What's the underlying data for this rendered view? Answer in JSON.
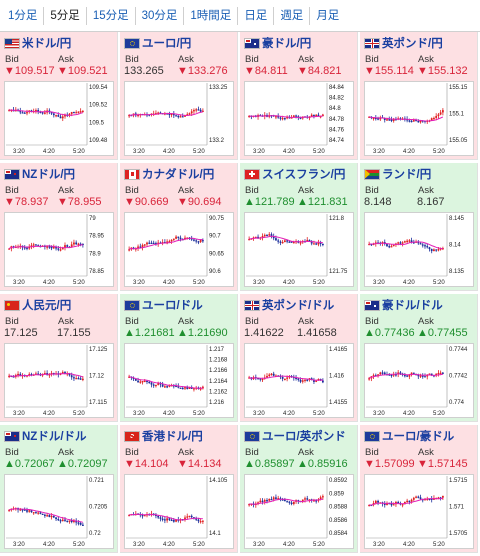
{
  "tabs": [
    {
      "label": "1分足",
      "active": false
    },
    {
      "label": "5分足",
      "active": true
    },
    {
      "label": "15分足",
      "active": false
    },
    {
      "label": "30分足",
      "active": false
    },
    {
      "label": "1時間足",
      "active": false
    },
    {
      "label": "日足",
      "active": false
    },
    {
      "label": "週足",
      "active": false
    },
    {
      "label": "月足",
      "active": false
    }
  ],
  "labels": {
    "bid": "Bid",
    "ask": "Ask"
  },
  "colors": {
    "down_bg": "#fde0e3",
    "up_bg": "#dcf5df",
    "candle_up": "#e02020",
    "candle_down": "#1c2f9c",
    "ma_line": "#e31fb8",
    "link_blue": "#1a5fb4"
  },
  "x_ticks": [
    "3:20",
    "4:20",
    "5:20"
  ],
  "pairs": [
    {
      "name": "米ドル/円",
      "trend": "down",
      "bid": "▼109.517",
      "ask": "▼109.521",
      "flag": "us-flag-icon",
      "ticks": [
        "109.54",
        "109.52",
        "109.5",
        "109.48"
      ]
    },
    {
      "name": "ユーロ/円",
      "trend": "flat",
      "bid": "133.265",
      "ask": "▼133.276",
      "flag": "eu-flag-icon",
      "ticks": [
        "133.25",
        "133.2"
      ]
    },
    {
      "name": "豪ドル/円",
      "trend": "down",
      "bid": "▼84.811",
      "ask": "▼84.821",
      "flag": "au-flag-icon",
      "ticks": [
        "84.84",
        "84.82",
        "84.8",
        "84.78",
        "84.76",
        "84.74"
      ]
    },
    {
      "name": "英ポンド/円",
      "trend": "down",
      "bid": "▼155.114",
      "ask": "▼155.132",
      "flag": "uk-flag-icon",
      "ticks": [
        "155.15",
        "155.1",
        "155.05"
      ]
    },
    {
      "name": "NZドル/円",
      "trend": "down",
      "bid": "▼78.937",
      "ask": "▼78.955",
      "flag": "nz-flag-icon",
      "ticks": [
        "79",
        "78.95",
        "78.9",
        "78.85"
      ]
    },
    {
      "name": "カナダドル/円",
      "trend": "down",
      "bid": "▼90.669",
      "ask": "▼90.694",
      "flag": "ca-flag-icon",
      "ticks": [
        "90.75",
        "90.7",
        "90.65",
        "90.6"
      ]
    },
    {
      "name": "スイスフラン/円",
      "trend": "up",
      "bid": "▲121.789",
      "ask": "▲121.831",
      "flag": "ch-flag-icon",
      "ticks": [
        "121.8",
        "121.75"
      ]
    },
    {
      "name": "ランド/円",
      "trend": "flat",
      "bid": "8.148",
      "ask": "8.167",
      "flag": "za-flag-icon",
      "ticks": [
        "8.145",
        "8.14",
        "8.135"
      ]
    },
    {
      "name": "人民元/円",
      "trend": "flat",
      "bid": "17.125",
      "ask": "17.155",
      "flag": "cn-flag-icon",
      "ticks": [
        "17.125",
        "17.12",
        "17.115"
      ]
    },
    {
      "name": "ユーロ/ドル",
      "trend": "up",
      "bid": "▲1.21681",
      "ask": "▲1.21690",
      "flag": "eu-flag-icon",
      "ticks": [
        "1.217",
        "1.2168",
        "1.2166",
        "1.2164",
        "1.2162",
        "1.216"
      ]
    },
    {
      "name": "英ポンド/ドル",
      "trend": "flat",
      "bid": "1.41622",
      "ask": "1.41658",
      "flag": "uk-flag-icon",
      "ticks": [
        "1.4165",
        "1.416",
        "1.4155"
      ]
    },
    {
      "name": "豪ドル/ドル",
      "trend": "up",
      "bid": "▲0.77436",
      "ask": "▲0.77455",
      "flag": "au-flag-icon",
      "ticks": [
        "0.7744",
        "0.7742",
        "0.774"
      ]
    },
    {
      "name": "NZドル/ドル",
      "trend": "up",
      "bid": "▲0.72067",
      "ask": "▲0.72097",
      "flag": "nz-flag-icon",
      "ticks": [
        "0.721",
        "0.7205",
        "0.72"
      ]
    },
    {
      "name": "香港ドル/円",
      "trend": "down",
      "bid": "▼14.104",
      "ask": "▼14.134",
      "flag": "hk-flag-icon",
      "ticks": [
        "14.105",
        "14.1"
      ]
    },
    {
      "name": "ユーロ/英ポンド",
      "trend": "up",
      "bid": "▲0.85897",
      "ask": "▲0.85916",
      "flag": "eu-flag-icon",
      "ticks": [
        "0.8592",
        "0.859",
        "0.8588",
        "0.8586",
        "0.8584"
      ]
    },
    {
      "name": "ユーロ/豪ドル",
      "trend": "down",
      "bid": "▼1.57099",
      "ask": "▼1.57145",
      "flag": "eu-flag-icon",
      "ticks": [
        "1.5715",
        "1.571",
        "1.5705"
      ]
    }
  ]
}
